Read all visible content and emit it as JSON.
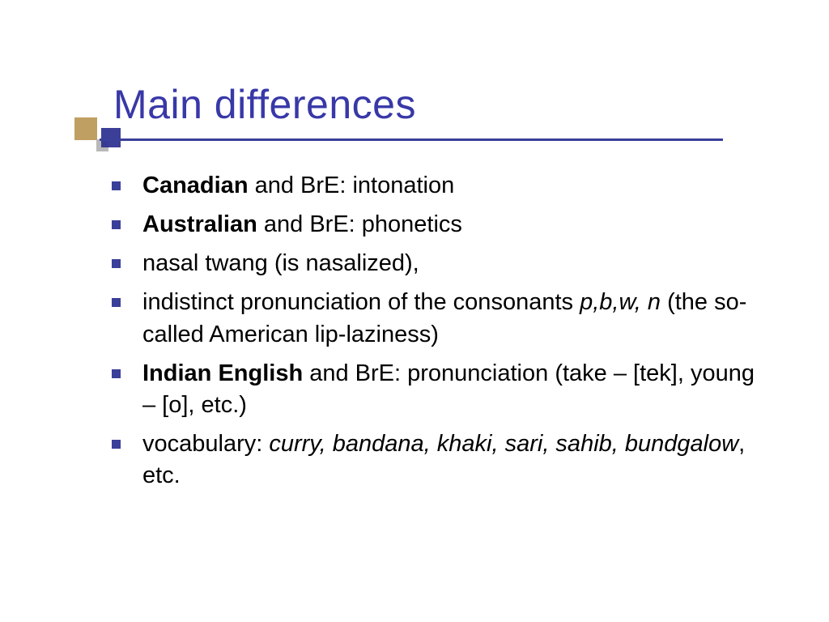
{
  "slide": {
    "title": "Main differences",
    "title_color": "#3838a8",
    "title_fontsize": 50,
    "underline_color": "#3a3f99",
    "bullet_color": "#3a3f99",
    "body_fontsize": 29,
    "body_color": "#000000",
    "decor": {
      "gold": "#c0a062",
      "gray": "#b8b8b8",
      "navy": "#2a2f8f"
    },
    "items": {
      "0": {
        "bold": "Canadian",
        "rest": " and BrE: intonation"
      },
      "1": {
        "bold": "Australian",
        "rest": " and BrE: phonetics"
      },
      "2": {
        "text": "nasal twang (is nasalized),"
      },
      "3": {
        "lead": "indistinct pronunciation of the consonants ",
        "italic": "p,b,w, n ",
        "tail": "(the so-called American lip-laziness)"
      },
      "4": {
        "bold": "Indian English",
        "rest": " and BrE: pronunciation (take – [tek], young – [o], etc.)"
      },
      "5": {
        "lead": "vocabulary: ",
        "italic": "curry, bandana, khaki, sari, sahib, bundgalow",
        "tail": ", etc."
      }
    }
  }
}
